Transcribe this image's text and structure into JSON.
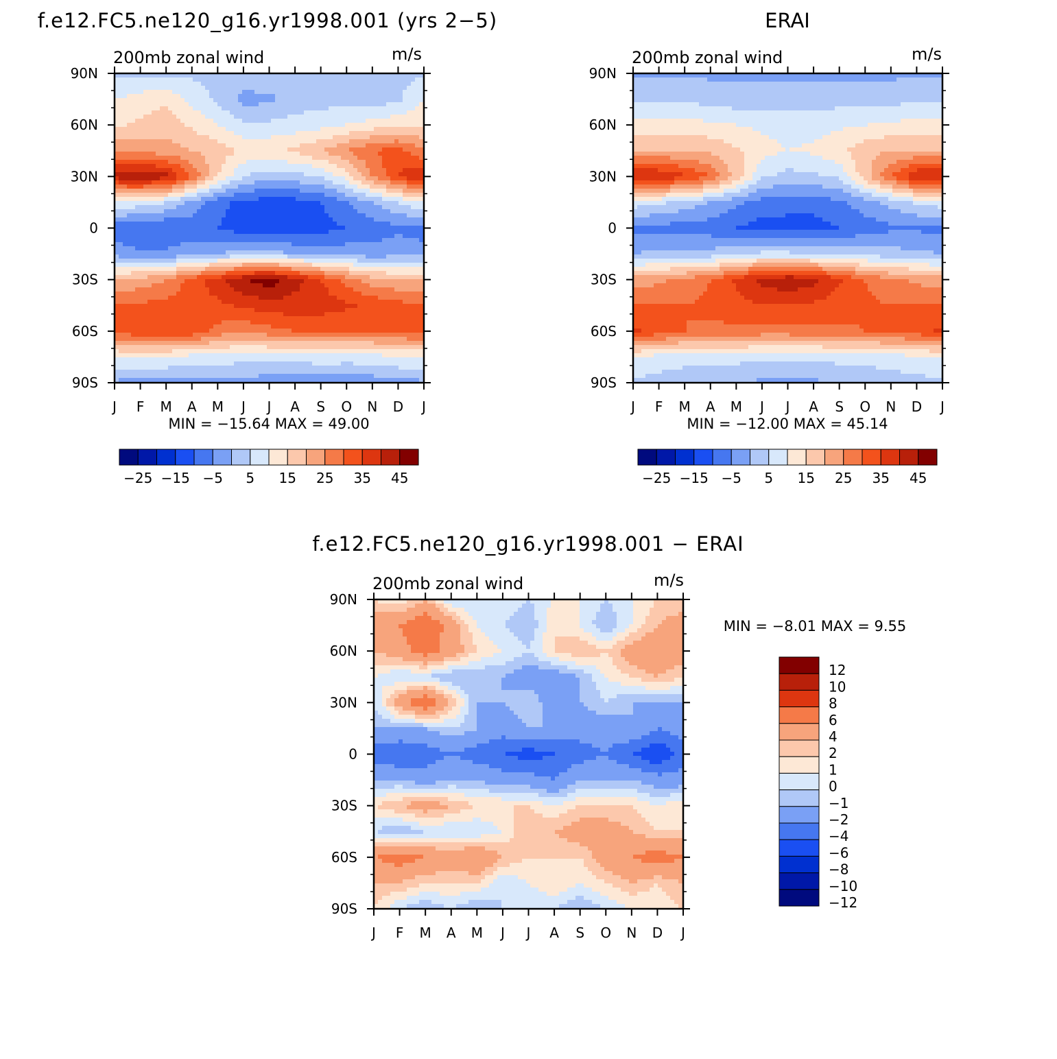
{
  "panels": [
    {
      "title": "f.e12.FC5.ne120_g16.yr1998.001 (yrs 2−5)",
      "subtitle": "200mb  zonal  wind",
      "units": "m/s",
      "minmax": "MIN =  −15.64  MAX =    49.00"
    },
    {
      "title": "ERAI",
      "subtitle": "200mb  zonal  wind",
      "units": "m/s",
      "minmax": "MIN =  −12.00  MAX =    45.14"
    },
    {
      "title": "f.e12.FC5.ne120_g16.yr1998.001  −  ERAI",
      "subtitle": "200mb  zonal  wind",
      "units": "m/s",
      "minmax": "MIN =    −8.01  MAX =     9.55"
    }
  ],
  "abs_colorbar": {
    "colors": [
      "#000a7e",
      "#0018a8",
      "#0030d0",
      "#1a4ff2",
      "#4677f0",
      "#7aa0f5",
      "#b0c8f7",
      "#d8e8fb",
      "#fde8d6",
      "#fcc8ac",
      "#f7a47c",
      "#f57a48",
      "#f3521c",
      "#dd3610",
      "#b8200a",
      "#820000"
    ],
    "labels": [
      "−25",
      "−15",
      "−5",
      "5",
      "15",
      "25",
      "35",
      "45"
    ]
  },
  "diff_colorbar": {
    "colors": [
      "#820000",
      "#b8200a",
      "#dd3610",
      "#f57a48",
      "#f7a47c",
      "#fcc8ac",
      "#fde8d6",
      "#d8e8fb",
      "#b0c8f7",
      "#7aa0f5",
      "#4677f0",
      "#1a4ff2",
      "#0030d0",
      "#0018a8",
      "#000a7e"
    ],
    "labels": [
      "12",
      "10",
      "8",
      "6",
      "4",
      "2",
      "1",
      "0",
      "−1",
      "−2",
      "−4",
      "−6",
      "−8",
      "−10",
      "−12"
    ]
  },
  "chart_data": [
    {
      "type": "heatmap",
      "title": "f.e12.FC5.ne120_g16.yr1998.001 (yrs 2−5)",
      "subtitle": "200mb  zonal  wind",
      "units": "m/s",
      "x": [
        "J",
        "F",
        "M",
        "A",
        "M",
        "J",
        "J",
        "A",
        "S",
        "O",
        "N",
        "D",
        "J"
      ],
      "y": [
        "90N",
        "60N",
        "30N",
        "0",
        "30S",
        "60S",
        "90S"
      ],
      "xlabel": "",
      "ylabel": "",
      "lat": [
        90,
        75,
        60,
        45,
        30,
        15,
        0,
        -15,
        -30,
        -45,
        -60,
        -75,
        -90
      ],
      "values": [
        [
          4,
          4,
          4,
          4,
          4,
          4,
          4,
          4,
          4,
          4,
          4,
          4,
          4
        ],
        [
          10,
          12,
          14,
          8,
          4,
          -2,
          -1,
          2,
          3,
          3,
          2,
          4,
          10
        ],
        [
          14,
          16,
          18,
          14,
          10,
          6,
          6,
          7,
          8,
          10,
          12,
          14,
          14
        ],
        [
          25,
          24,
          22,
          20,
          18,
          14,
          14,
          16,
          20,
          25,
          30,
          32,
          25
        ],
        [
          42,
          45,
          42,
          30,
          15,
          5,
          2,
          3,
          5,
          12,
          25,
          35,
          42
        ],
        [
          10,
          8,
          5,
          -2,
          -8,
          -12,
          -12,
          -12,
          -10,
          -5,
          0,
          5,
          10
        ],
        [
          -8,
          -10,
          -10,
          -8,
          -10,
          -13,
          -14,
          -14,
          -12,
          -10,
          -8,
          -6,
          -8
        ],
        [
          -2,
          -4,
          -4,
          -2,
          0,
          2,
          2,
          0,
          -2,
          -2,
          -3,
          -2,
          -2
        ],
        [
          20,
          22,
          25,
          32,
          38,
          45,
          48,
          42,
          35,
          28,
          22,
          20,
          20
        ],
        [
          30,
          31,
          32,
          33,
          34,
          36,
          38,
          38,
          38,
          36,
          34,
          32,
          30
        ],
        [
          32,
          34,
          34,
          34,
          28,
          26,
          28,
          30,
          30,
          30,
          30,
          31,
          32
        ],
        [
          10,
          10,
          10,
          8,
          8,
          7,
          7,
          7,
          8,
          8,
          8,
          10,
          10
        ],
        [
          -1,
          -2,
          -2,
          -2,
          -2,
          -2,
          -3,
          -3,
          -3,
          -4,
          -3,
          -2,
          -1
        ]
      ],
      "min": -15.64,
      "max": 49.0,
      "levels": [
        -30,
        -25,
        -20,
        -15,
        -10,
        -5,
        0,
        5,
        10,
        15,
        20,
        25,
        30,
        35,
        40,
        45,
        50
      ]
    },
    {
      "type": "heatmap",
      "title": "ERAI",
      "subtitle": "200mb  zonal  wind",
      "units": "m/s",
      "x": [
        "J",
        "F",
        "M",
        "A",
        "M",
        "J",
        "J",
        "A",
        "S",
        "O",
        "N",
        "D",
        "J"
      ],
      "y": [
        "90N",
        "60N",
        "30N",
        "0",
        "30S",
        "60S",
        "90S"
      ],
      "xlabel": "",
      "ylabel": "",
      "lat": [
        90,
        75,
        60,
        45,
        30,
        15,
        0,
        -15,
        -30,
        -45,
        -60,
        -75,
        -90
      ],
      "values": [
        [
          -1,
          -1,
          -1,
          -1,
          -1,
          -1,
          -1,
          -1,
          -1,
          -1,
          -1,
          -1,
          -1
        ],
        [
          4,
          4,
          4,
          3,
          2,
          2,
          2,
          2,
          3,
          3,
          3,
          4,
          4
        ],
        [
          12,
          12,
          12,
          11,
          10,
          9,
          8,
          8,
          9,
          10,
          11,
          12,
          12
        ],
        [
          20,
          20,
          20,
          19,
          16,
          12,
          10,
          11,
          14,
          18,
          20,
          20,
          20
        ],
        [
          42,
          40,
          36,
          30,
          18,
          6,
          3,
          4,
          6,
          18,
          30,
          40,
          42
        ],
        [
          8,
          6,
          3,
          0,
          -4,
          -7,
          -8,
          -8,
          -6,
          -2,
          2,
          6,
          8
        ],
        [
          -6,
          -7,
          -7,
          -8,
          -10,
          -12,
          -12,
          -12,
          -10,
          -8,
          -6,
          -6,
          -6
        ],
        [
          0,
          1,
          1,
          2,
          4,
          6,
          6,
          5,
          4,
          3,
          2,
          1,
          0
        ],
        [
          22,
          24,
          26,
          30,
          36,
          42,
          44,
          42,
          36,
          30,
          26,
          24,
          22
        ],
        [
          30,
          30,
          30,
          31,
          33,
          35,
          35,
          34,
          32,
          31,
          30,
          30,
          30
        ],
        [
          36,
          33,
          30,
          29,
          29,
          28,
          28,
          29,
          29,
          30,
          31,
          33,
          36
        ],
        [
          10,
          8,
          7,
          7,
          7,
          6,
          6,
          6,
          7,
          7,
          8,
          9,
          10
        ],
        [
          4,
          3,
          2,
          1,
          0,
          -1,
          -1,
          -1,
          0,
          1,
          2,
          3,
          4
        ]
      ],
      "min": -12.0,
      "max": 45.14,
      "levels": [
        -30,
        -25,
        -20,
        -15,
        -10,
        -5,
        0,
        5,
        10,
        15,
        20,
        25,
        30,
        35,
        40,
        45,
        50
      ]
    },
    {
      "type": "heatmap",
      "title": "f.e12.FC5.ne120_g16.yr1998.001  −  ERAI",
      "subtitle": "200mb  zonal  wind",
      "units": "m/s",
      "x": [
        "J",
        "F",
        "M",
        "A",
        "M",
        "J",
        "J",
        "A",
        "S",
        "O",
        "N",
        "D",
        "J"
      ],
      "y": [
        "90N",
        "60N",
        "30N",
        "0",
        "30S",
        "60S",
        "90S"
      ],
      "xlabel": "",
      "ylabel": "",
      "lat": [
        90,
        75,
        60,
        45,
        30,
        15,
        0,
        -15,
        -30,
        -45,
        -60,
        -75,
        -90
      ],
      "values": [
        [
          1,
          0,
          2,
          -1,
          -1,
          0,
          -1,
          0,
          0,
          -1,
          0,
          1,
          1
        ],
        [
          3,
          4,
          6,
          3,
          0,
          -1,
          -2,
          1,
          0,
          -2,
          0,
          2,
          3
        ],
        [
          2,
          3,
          5,
          3,
          1,
          0,
          -1,
          1,
          2,
          1,
          3,
          4,
          3
        ],
        [
          0,
          -1,
          -1,
          -2,
          -2,
          -2,
          -3,
          -3,
          -2,
          0,
          1,
          2,
          1
        ],
        [
          -1,
          3,
          6,
          2,
          -2,
          -2,
          -1,
          -3,
          -2,
          -1,
          -2,
          -2,
          -2
        ],
        [
          -2,
          -2,
          -2,
          -1,
          -2,
          -3,
          -2,
          -2,
          -3,
          -3,
          -2,
          -4,
          -3
        ],
        [
          -5,
          -6,
          -5,
          -4,
          -5,
          -6,
          -7,
          -6,
          -5,
          -4,
          -6,
          -8,
          -5
        ],
        [
          -2,
          -2,
          -3,
          -2,
          -2,
          -3,
          -3,
          -4,
          -2,
          -2,
          -2,
          -3,
          -3
        ],
        [
          1,
          2,
          3,
          2,
          1,
          1,
          1,
          0,
          1,
          1,
          1,
          0,
          1
        ],
        [
          -1,
          -2,
          -1,
          -1,
          -1,
          0,
          2,
          2,
          3,
          3,
          2,
          1,
          1
        ],
        [
          4,
          5,
          4,
          3,
          4,
          2,
          1,
          1,
          1,
          3,
          4,
          5,
          4
        ],
        [
          2,
          2,
          1,
          1,
          1,
          -1,
          0,
          1,
          0,
          1,
          2,
          1,
          2
        ],
        [
          1,
          -1,
          -2,
          -1,
          -2,
          -1,
          -1,
          -1,
          -2,
          -1,
          0,
          0,
          1
        ]
      ],
      "min": -8.01,
      "max": 9.55,
      "levels": [
        -14,
        -12,
        -10,
        -8,
        -6,
        -4,
        -2,
        -1,
        0,
        1,
        2,
        4,
        6,
        8,
        10,
        12,
        14
      ]
    }
  ]
}
